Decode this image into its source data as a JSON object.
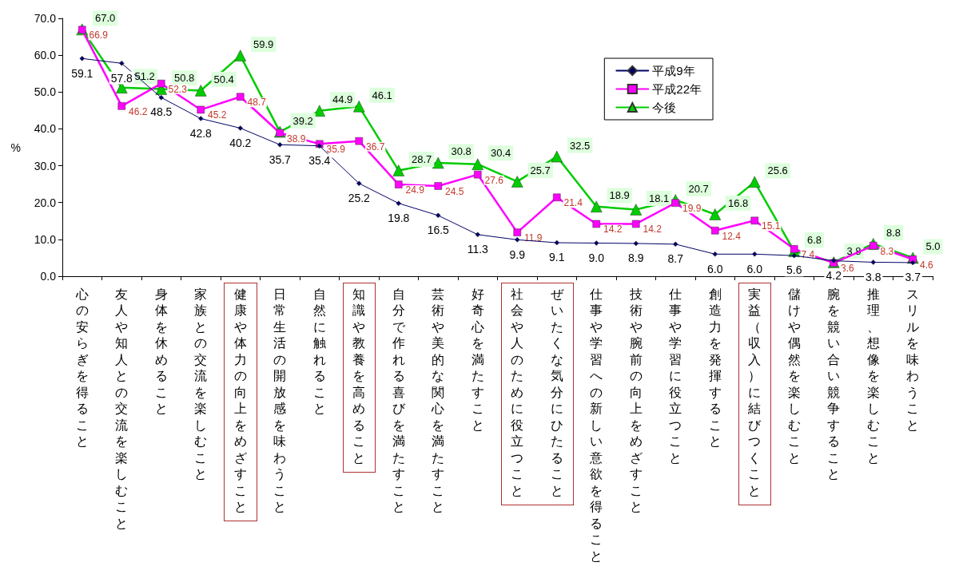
{
  "chart_data": {
    "type": "line",
    "ylabel": "%",
    "categories": [
      "心の安らぎを得ること",
      "友人や知人との交流を楽しむこと",
      "身体を休めること",
      "家族との交流を楽しむこと",
      "健康や体力の向上をめざすこと",
      "日常生活の開放感を味わうこと",
      "自然に触れること",
      "知識や教養を高めること",
      "自分で作れる喜びを満たすこと",
      "芸術や美的な関心を満たすこと",
      "好奇心を満たすこと",
      "社会や人のために役立つこと",
      "ぜいたくな気分にひたること",
      "仕事や学習への新しい意欲を得ること",
      "技術や腕前の向上をめざすこと",
      "仕事や学習に役立つこと",
      "創造力を発揮すること",
      "実益（収入）に結びつくこと",
      "儲けや偶然を楽しむこと",
      "腕を競い合い競争すること",
      "推理、想像を楽しむこと",
      "スリルを味わうこと"
    ],
    "series": [
      {
        "name": "平成9年",
        "color": "#000066",
        "marker": "diamond",
        "values": [
          59.1,
          57.8,
          48.5,
          42.8,
          40.2,
          35.7,
          35.4,
          25.2,
          19.8,
          16.5,
          11.3,
          9.9,
          9.1,
          9.0,
          8.9,
          8.7,
          6.0,
          6.0,
          5.6,
          4.2,
          3.8,
          3.7
        ],
        "value_labels": [
          "59.1",
          "57.8",
          "48.5",
          "42.8",
          "40.2",
          "35.7",
          "35.4",
          "25.2",
          "19.8",
          "16.5",
          "11.3",
          "9.9",
          "9.1",
          "9.0",
          "8.9",
          "8.7",
          "6.0",
          "6.0",
          "5.6",
          "4.2",
          "3.8",
          "3.7"
        ]
      },
      {
        "name": "平成22年",
        "color": "#ff00ff",
        "marker": "square",
        "values": [
          66.9,
          46.2,
          52.3,
          45.2,
          48.7,
          38.9,
          35.9,
          36.7,
          24.9,
          24.5,
          27.6,
          11.9,
          21.4,
          14.2,
          14.2,
          19.9,
          12.4,
          15.1,
          7.4,
          3.6,
          8.3,
          4.6
        ],
        "value_labels": [
          "66.9",
          "46.2",
          "52.3",
          "45.2",
          "48.7",
          "38.9",
          "35.9",
          "36.7",
          "24.9",
          "24.5",
          "27.6",
          "11.9",
          "21.4",
          "14.2",
          "14.2",
          "19.9",
          "12.4",
          "15.1",
          "7.4",
          "3.6",
          "8.3",
          "4.6"
        ]
      },
      {
        "name": "今後",
        "color": "#00cc00",
        "marker": "triangle",
        "values": [
          67.0,
          51.2,
          50.8,
          50.4,
          59.9,
          39.2,
          44.9,
          46.1,
          28.7,
          30.8,
          30.4,
          25.7,
          32.5,
          18.9,
          18.1,
          20.7,
          16.8,
          25.6,
          6.8,
          3.8,
          8.8,
          5.0
        ],
        "value_labels": [
          "67.0",
          "51.2",
          "50.8",
          "50.4",
          "59.9",
          "39.2",
          "44.9",
          "46.1",
          "28.7",
          "30.8",
          "30.4",
          "25.7",
          "32.5",
          "18.9",
          "18.1",
          "20.7",
          "16.8",
          "25.6",
          "6.8",
          "3.8",
          "8.8",
          "5.0"
        ]
      }
    ],
    "ylim": [
      0,
      70
    ],
    "yticks": [
      {
        "value": 0,
        "label": "0.0"
      },
      {
        "value": 10,
        "label": "10.0"
      },
      {
        "value": 20,
        "label": "20.0"
      },
      {
        "value": 30,
        "label": "30.0"
      },
      {
        "value": 40,
        "label": "40.0"
      },
      {
        "value": 50,
        "label": "50.0"
      },
      {
        "value": 60,
        "label": "60.0"
      },
      {
        "value": 70,
        "label": "70.0"
      }
    ],
    "legend": "top right"
  }
}
